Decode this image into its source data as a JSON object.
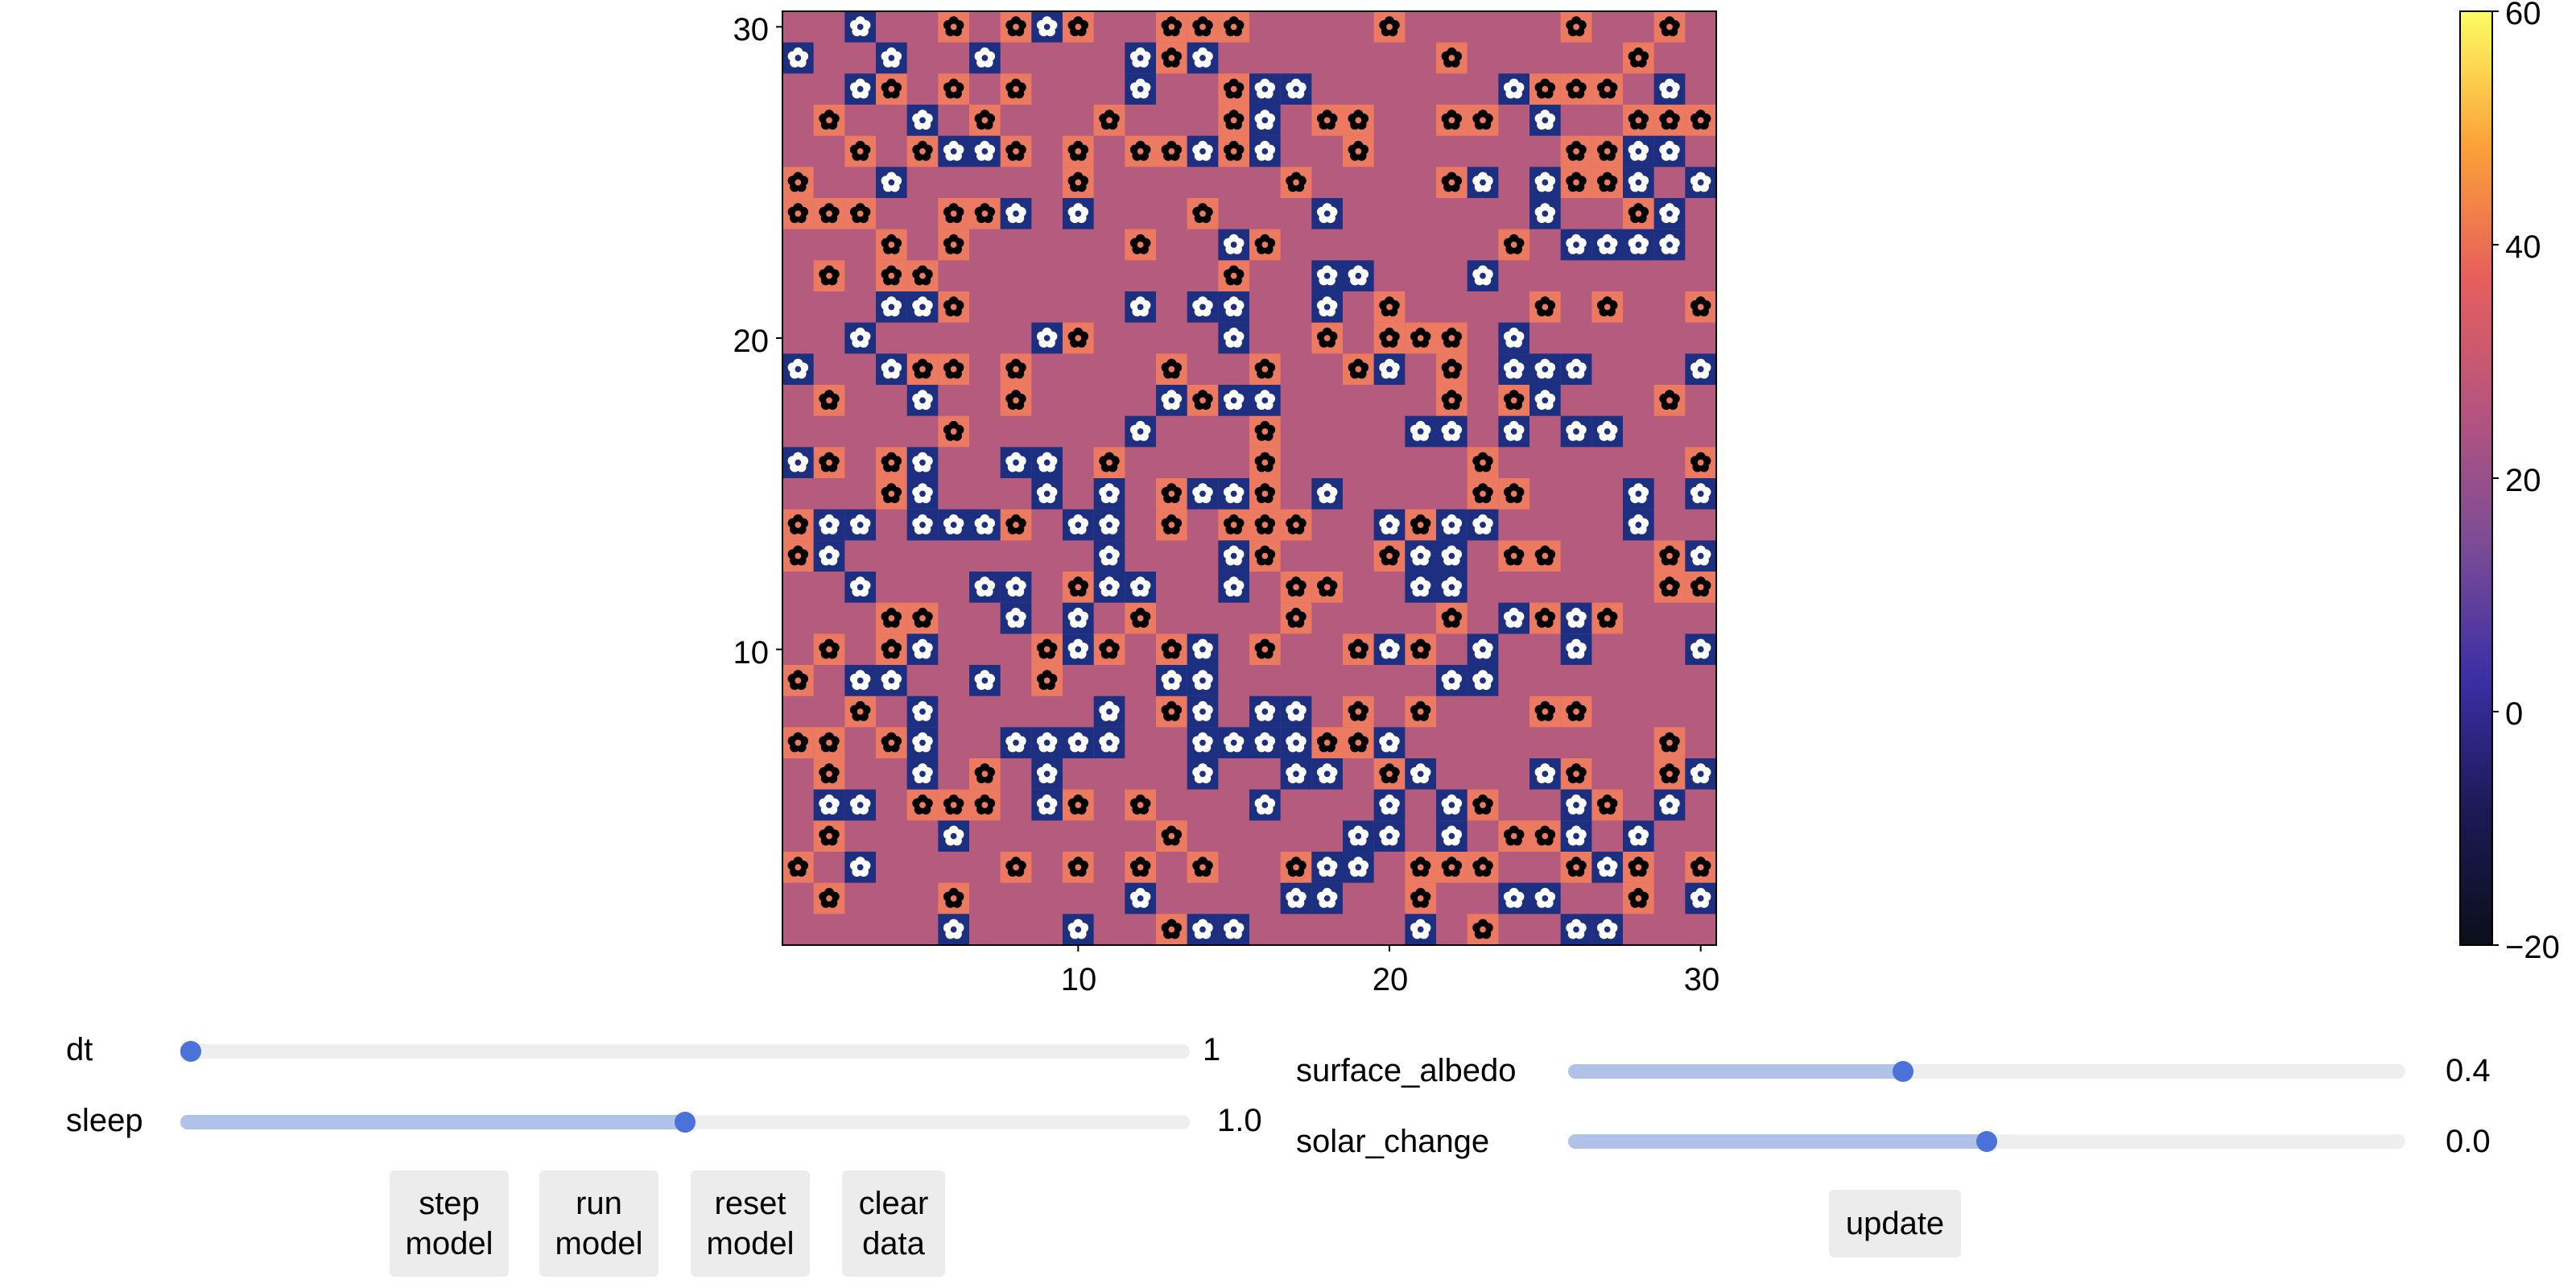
{
  "heatmap": {
    "x_ticks": [
      "10",
      "20",
      "30"
    ],
    "y_ticks": [
      "10",
      "20",
      "30"
    ],
    "cell_color": "#b55b7d",
    "black_tile_color": "#ec7a60",
    "white_tile_color": "#1d2f80",
    "grid_n": 30,
    "black_daisies": [
      [
        6,
        30
      ],
      [
        8,
        30
      ],
      [
        10,
        30
      ],
      [
        13,
        30
      ],
      [
        14,
        30
      ],
      [
        15,
        30
      ],
      [
        20,
        30
      ],
      [
        26,
        30
      ],
      [
        29,
        30
      ],
      [
        13,
        29
      ],
      [
        22,
        29
      ],
      [
        28,
        29
      ],
      [
        4,
        28
      ],
      [
        6,
        28
      ],
      [
        8,
        28
      ],
      [
        15,
        28
      ],
      [
        25,
        28
      ],
      [
        26,
        28
      ],
      [
        27,
        28
      ],
      [
        2,
        27
      ],
      [
        7,
        27
      ],
      [
        11,
        27
      ],
      [
        15,
        27
      ],
      [
        18,
        27
      ],
      [
        19,
        27
      ],
      [
        22,
        27
      ],
      [
        23,
        27
      ],
      [
        28,
        27
      ],
      [
        29,
        27
      ],
      [
        30,
        27
      ],
      [
        3,
        26
      ],
      [
        5,
        26
      ],
      [
        8,
        26
      ],
      [
        10,
        26
      ],
      [
        12,
        26
      ],
      [
        13,
        26
      ],
      [
        15,
        26
      ],
      [
        19,
        26
      ],
      [
        26,
        26
      ],
      [
        27,
        26
      ],
      [
        1,
        25
      ],
      [
        10,
        25
      ],
      [
        17,
        25
      ],
      [
        22,
        25
      ],
      [
        26,
        25
      ],
      [
        27,
        25
      ],
      [
        1,
        24
      ],
      [
        2,
        24
      ],
      [
        3,
        24
      ],
      [
        6,
        24
      ],
      [
        7,
        24
      ],
      [
        14,
        24
      ],
      [
        28,
        24
      ],
      [
        4,
        23
      ],
      [
        6,
        23
      ],
      [
        12,
        23
      ],
      [
        16,
        23
      ],
      [
        24,
        23
      ],
      [
        2,
        22
      ],
      [
        4,
        22
      ],
      [
        5,
        22
      ],
      [
        15,
        22
      ],
      [
        6,
        21
      ],
      [
        20,
        21
      ],
      [
        25,
        21
      ],
      [
        27,
        21
      ],
      [
        30,
        21
      ],
      [
        10,
        20
      ],
      [
        18,
        20
      ],
      [
        20,
        20
      ],
      [
        21,
        20
      ],
      [
        22,
        20
      ],
      [
        5,
        19
      ],
      [
        6,
        19
      ],
      [
        8,
        19
      ],
      [
        13,
        19
      ],
      [
        16,
        19
      ],
      [
        19,
        19
      ],
      [
        22,
        19
      ],
      [
        2,
        18
      ],
      [
        5,
        18
      ],
      [
        8,
        18
      ],
      [
        14,
        18
      ],
      [
        22,
        18
      ],
      [
        24,
        18
      ],
      [
        29,
        18
      ],
      [
        6,
        17
      ],
      [
        16,
        17
      ],
      [
        16,
        16
      ],
      [
        2,
        16
      ],
      [
        4,
        16
      ],
      [
        11,
        16
      ],
      [
        23,
        16
      ],
      [
        30,
        16
      ],
      [
        4,
        15
      ],
      [
        5,
        15
      ],
      [
        13,
        15
      ],
      [
        16,
        15
      ],
      [
        23,
        15
      ],
      [
        24,
        15
      ],
      [
        1,
        14
      ],
      [
        8,
        14
      ],
      [
        13,
        14
      ],
      [
        15,
        14
      ],
      [
        16,
        14
      ],
      [
        17,
        14
      ],
      [
        21,
        14
      ],
      [
        1,
        13
      ],
      [
        16,
        13
      ],
      [
        20,
        13
      ],
      [
        24,
        13
      ],
      [
        25,
        13
      ],
      [
        29,
        13
      ],
      [
        10,
        12
      ],
      [
        17,
        12
      ],
      [
        18,
        12
      ],
      [
        29,
        12
      ],
      [
        30,
        12
      ],
      [
        4,
        11
      ],
      [
        5,
        11
      ],
      [
        12,
        11
      ],
      [
        17,
        11
      ],
      [
        22,
        11
      ],
      [
        25,
        11
      ],
      [
        27,
        11
      ],
      [
        2,
        10
      ],
      [
        4,
        10
      ],
      [
        9,
        10
      ],
      [
        11,
        10
      ],
      [
        13,
        10
      ],
      [
        16,
        10
      ],
      [
        19,
        10
      ],
      [
        21,
        10
      ],
      [
        1,
        9
      ],
      [
        9,
        9
      ],
      [
        3,
        8
      ],
      [
        13,
        8
      ],
      [
        19,
        8
      ],
      [
        21,
        8
      ],
      [
        25,
        8
      ],
      [
        26,
        8
      ],
      [
        1,
        7
      ],
      [
        2,
        7
      ],
      [
        4,
        7
      ],
      [
        18,
        7
      ],
      [
        19,
        7
      ],
      [
        29,
        7
      ],
      [
        2,
        6
      ],
      [
        7,
        6
      ],
      [
        20,
        6
      ],
      [
        26,
        6
      ],
      [
        29,
        6
      ],
      [
        5,
        5
      ],
      [
        6,
        5
      ],
      [
        7,
        5
      ],
      [
        10,
        5
      ],
      [
        12,
        5
      ],
      [
        22,
        5
      ],
      [
        23,
        5
      ],
      [
        27,
        5
      ],
      [
        2,
        4
      ],
      [
        13,
        4
      ],
      [
        24,
        4
      ],
      [
        25,
        4
      ],
      [
        1,
        3
      ],
      [
        8,
        3
      ],
      [
        10,
        3
      ],
      [
        12,
        3
      ],
      [
        14,
        3
      ],
      [
        17,
        3
      ],
      [
        21,
        3
      ],
      [
        22,
        3
      ],
      [
        23,
        3
      ],
      [
        26,
        3
      ],
      [
        28,
        3
      ],
      [
        30,
        3
      ],
      [
        2,
        2
      ],
      [
        6,
        2
      ],
      [
        21,
        2
      ],
      [
        28,
        2
      ],
      [
        13,
        1
      ],
      [
        23,
        1
      ]
    ],
    "white_daisies": [
      [
        3,
        30
      ],
      [
        9,
        30
      ],
      [
        1,
        29
      ],
      [
        4,
        29
      ],
      [
        7,
        29
      ],
      [
        12,
        29
      ],
      [
        14,
        29
      ],
      [
        3,
        28
      ],
      [
        12,
        28
      ],
      [
        16,
        28
      ],
      [
        17,
        28
      ],
      [
        24,
        28
      ],
      [
        29,
        28
      ],
      [
        5,
        27
      ],
      [
        16,
        27
      ],
      [
        25,
        27
      ],
      [
        6,
        26
      ],
      [
        7,
        26
      ],
      [
        14,
        26
      ],
      [
        16,
        26
      ],
      [
        28,
        26
      ],
      [
        29,
        26
      ],
      [
        4,
        25
      ],
      [
        23,
        25
      ],
      [
        25,
        25
      ],
      [
        28,
        25
      ],
      [
        30,
        25
      ],
      [
        8,
        24
      ],
      [
        10,
        24
      ],
      [
        18,
        24
      ],
      [
        25,
        24
      ],
      [
        29,
        24
      ],
      [
        15,
        23
      ],
      [
        26,
        23
      ],
      [
        27,
        23
      ],
      [
        28,
        23
      ],
      [
        29,
        23
      ],
      [
        18,
        22
      ],
      [
        19,
        22
      ],
      [
        23,
        22
      ],
      [
        4,
        21
      ],
      [
        5,
        21
      ],
      [
        12,
        21
      ],
      [
        14,
        21
      ],
      [
        15,
        21
      ],
      [
        18,
        21
      ],
      [
        3,
        20
      ],
      [
        9,
        20
      ],
      [
        15,
        20
      ],
      [
        24,
        20
      ],
      [
        1,
        19
      ],
      [
        4,
        19
      ],
      [
        20,
        19
      ],
      [
        24,
        19
      ],
      [
        25,
        19
      ],
      [
        26,
        19
      ],
      [
        30,
        19
      ],
      [
        5,
        18
      ],
      [
        13,
        18
      ],
      [
        15,
        18
      ],
      [
        16,
        18
      ],
      [
        25,
        18
      ],
      [
        12,
        17
      ],
      [
        21,
        17
      ],
      [
        22,
        17
      ],
      [
        24,
        17
      ],
      [
        26,
        17
      ],
      [
        27,
        17
      ],
      [
        1,
        16
      ],
      [
        5,
        16
      ],
      [
        8,
        16
      ],
      [
        9,
        16
      ],
      [
        5,
        15
      ],
      [
        9,
        15
      ],
      [
        11,
        15
      ],
      [
        14,
        15
      ],
      [
        15,
        15
      ],
      [
        18,
        15
      ],
      [
        28,
        15
      ],
      [
        30,
        15
      ],
      [
        2,
        14
      ],
      [
        3,
        14
      ],
      [
        5,
        14
      ],
      [
        6,
        14
      ],
      [
        7,
        14
      ],
      [
        10,
        14
      ],
      [
        11,
        14
      ],
      [
        20,
        14
      ],
      [
        22,
        14
      ],
      [
        23,
        14
      ],
      [
        28,
        14
      ],
      [
        2,
        13
      ],
      [
        11,
        13
      ],
      [
        15,
        13
      ],
      [
        21,
        13
      ],
      [
        22,
        13
      ],
      [
        30,
        13
      ],
      [
        3,
        12
      ],
      [
        7,
        12
      ],
      [
        8,
        12
      ],
      [
        11,
        12
      ],
      [
        12,
        12
      ],
      [
        15,
        12
      ],
      [
        21,
        12
      ],
      [
        22,
        12
      ],
      [
        8,
        11
      ],
      [
        10,
        11
      ],
      [
        24,
        11
      ],
      [
        26,
        11
      ],
      [
        5,
        10
      ],
      [
        10,
        10
      ],
      [
        14,
        10
      ],
      [
        20,
        10
      ],
      [
        23,
        10
      ],
      [
        26,
        10
      ],
      [
        30,
        10
      ],
      [
        3,
        9
      ],
      [
        4,
        9
      ],
      [
        7,
        9
      ],
      [
        13,
        9
      ],
      [
        14,
        9
      ],
      [
        22,
        9
      ],
      [
        23,
        9
      ],
      [
        5,
        8
      ],
      [
        11,
        8
      ],
      [
        14,
        8
      ],
      [
        16,
        8
      ],
      [
        17,
        8
      ],
      [
        5,
        7
      ],
      [
        8,
        7
      ],
      [
        9,
        7
      ],
      [
        10,
        7
      ],
      [
        11,
        7
      ],
      [
        14,
        7
      ],
      [
        15,
        7
      ],
      [
        16,
        7
      ],
      [
        17,
        7
      ],
      [
        20,
        7
      ],
      [
        5,
        6
      ],
      [
        9,
        6
      ],
      [
        14,
        6
      ],
      [
        17,
        6
      ],
      [
        18,
        6
      ],
      [
        21,
        6
      ],
      [
        25,
        6
      ],
      [
        30,
        6
      ],
      [
        2,
        5
      ],
      [
        3,
        5
      ],
      [
        9,
        5
      ],
      [
        16,
        5
      ],
      [
        20,
        5
      ],
      [
        22,
        5
      ],
      [
        26,
        5
      ],
      [
        29,
        5
      ],
      [
        6,
        4
      ],
      [
        19,
        4
      ],
      [
        20,
        4
      ],
      [
        22,
        4
      ],
      [
        26,
        4
      ],
      [
        28,
        4
      ],
      [
        3,
        3
      ],
      [
        18,
        3
      ],
      [
        19,
        3
      ],
      [
        27,
        3
      ],
      [
        12,
        2
      ],
      [
        17,
        2
      ],
      [
        18,
        2
      ],
      [
        24,
        2
      ],
      [
        25,
        2
      ],
      [
        30,
        2
      ],
      [
        6,
        1
      ],
      [
        10,
        1
      ],
      [
        14,
        1
      ],
      [
        15,
        1
      ],
      [
        21,
        1
      ],
      [
        26,
        1
      ],
      [
        27,
        1
      ]
    ]
  },
  "colorbar": {
    "ticks": [
      "60",
      "40",
      "20",
      "0",
      "−20"
    ],
    "min": -20,
    "max": 60,
    "colors": [
      "#fcfd62",
      "#fba238",
      "#e65f5c",
      "#b5547e",
      "#7b4c96",
      "#3b2fa5",
      "#1b1a55",
      "#0b0f1a"
    ]
  },
  "controls": {
    "dt": {
      "label": "dt",
      "value": "1",
      "fraction": 0.0
    },
    "sleep": {
      "label": "sleep",
      "value": "1.0",
      "fraction": 0.5
    },
    "surface_albedo": {
      "label": "surface_albedo",
      "value": "0.4",
      "fraction": 0.4
    },
    "solar_change": {
      "label": "solar_change",
      "value": "0.0",
      "fraction": 0.5
    }
  },
  "buttons": {
    "step": "step\nmodel",
    "run": "run\nmodel",
    "reset": "reset\nmodel",
    "clear": "clear\ndata",
    "update": "update"
  }
}
